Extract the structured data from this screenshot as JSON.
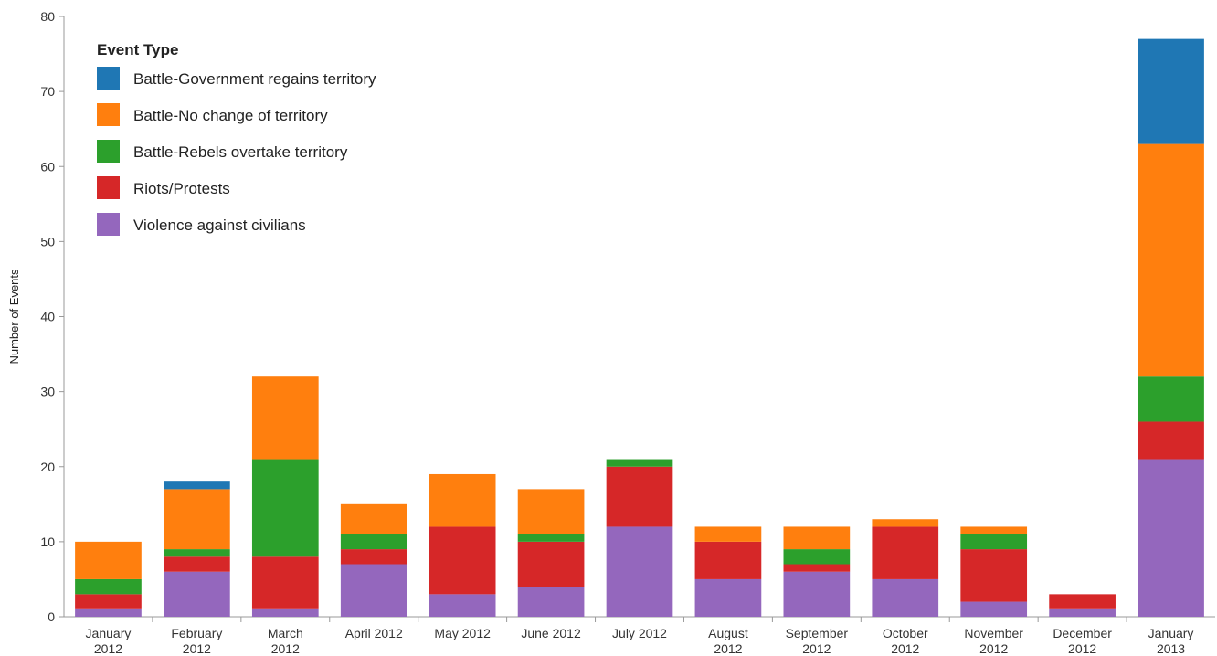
{
  "chart_data": {
    "type": "bar",
    "stacked": true,
    "categories": [
      [
        "January",
        "2012"
      ],
      [
        "February",
        "2012"
      ],
      [
        "March",
        "2012"
      ],
      [
        "April 2012"
      ],
      [
        "May 2012"
      ],
      [
        "June 2012"
      ],
      [
        "July 2012"
      ],
      [
        "August",
        "2012"
      ],
      [
        "September",
        "2012"
      ],
      [
        "October",
        "2012"
      ],
      [
        "November",
        "2012"
      ],
      [
        "December",
        "2012"
      ],
      [
        "January",
        "2013"
      ]
    ],
    "ylabel": "Number of Events",
    "xlabel": "",
    "ylim": [
      0,
      80
    ],
    "yticks": [
      0,
      10,
      20,
      30,
      40,
      50,
      60,
      70,
      80
    ],
    "grid": false,
    "legend": {
      "title": "Event Type",
      "placement": "top-left"
    },
    "series": [
      {
        "name": "Battle-Government regains territory",
        "color": "#1f77b4",
        "values": [
          0,
          1,
          0,
          0,
          0,
          0,
          0,
          0,
          0,
          0,
          0,
          0,
          14
        ]
      },
      {
        "name": "Battle-No change of territory",
        "color": "#ff7f0e",
        "values": [
          5,
          8,
          11,
          4,
          7,
          6,
          0,
          2,
          3,
          1,
          1,
          0,
          31
        ]
      },
      {
        "name": "Battle-Rebels overtake territory",
        "color": "#2ca02c",
        "values": [
          2,
          1,
          13,
          2,
          0,
          1,
          1,
          0,
          2,
          0,
          2,
          0,
          6
        ]
      },
      {
        "name": "Riots/Protests",
        "color": "#d62728",
        "values": [
          2,
          2,
          7,
          2,
          9,
          6,
          8,
          5,
          1,
          7,
          7,
          2,
          5
        ]
      },
      {
        "name": "Violence against civilians",
        "color": "#9467bd",
        "values": [
          1,
          6,
          1,
          7,
          3,
          4,
          12,
          5,
          6,
          5,
          2,
          1,
          21
        ]
      }
    ]
  }
}
